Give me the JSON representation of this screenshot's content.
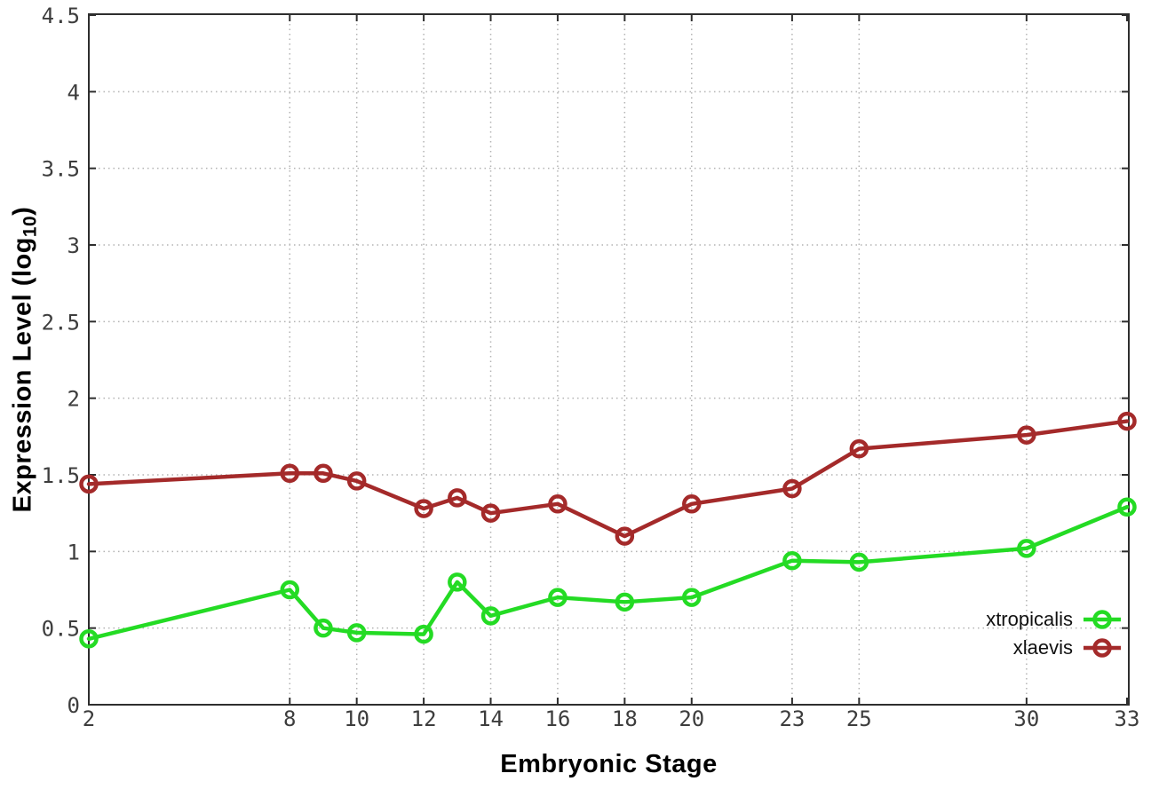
{
  "chart_data": {
    "type": "line",
    "title": "",
    "xlabel": "Embryonic Stage",
    "ylabel": "Expression Level (log10)",
    "ylabel_parts": {
      "main": "Expression Level (log",
      "sub": "10",
      "close": ")"
    },
    "x": [
      2,
      8,
      9,
      10,
      12,
      13,
      14,
      16,
      18,
      20,
      23,
      25,
      30,
      33
    ],
    "series": [
      {
        "name": "xtropicalis",
        "color": "#24DB24",
        "values": [
          0.43,
          0.75,
          0.5,
          0.47,
          0.46,
          0.8,
          0.58,
          0.7,
          0.67,
          0.7,
          0.94,
          0.93,
          1.02,
          1.29
        ]
      },
      {
        "name": "xlaevis",
        "color": "#A42A2A",
        "values": [
          1.44,
          1.51,
          1.51,
          1.46,
          1.28,
          1.35,
          1.25,
          1.31,
          1.1,
          1.31,
          1.41,
          1.67,
          1.76,
          1.85
        ]
      }
    ],
    "xlim": [
      2,
      33
    ],
    "ylim": [
      0,
      4.5
    ],
    "x_ticks": [
      2,
      8,
      10,
      12,
      14,
      16,
      18,
      20,
      23,
      25,
      30,
      33
    ],
    "y_ticks": [
      0,
      0.5,
      1,
      1.5,
      2,
      2.5,
      3,
      3.5,
      4,
      4.5
    ],
    "grid": "dotted",
    "legend_position": "right-lower"
  },
  "styles": {
    "background": "#ffffff",
    "axis_color": "#2e2e2e",
    "grid_color": "#b3b3b3",
    "tick_label_color": "#3d3d3d",
    "title_color": "#000000",
    "legend_text_color": "#111111",
    "marker_style": "open-circle"
  }
}
